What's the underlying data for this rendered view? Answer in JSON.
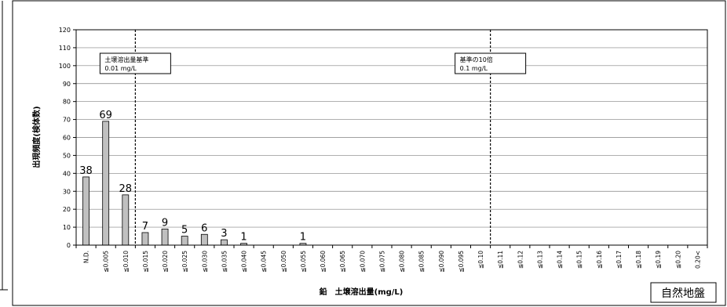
{
  "chart_data": {
    "type": "bar",
    "title": "",
    "xlabel": "鉛　土壌溶出量(mg/L)",
    "ylabel": "出現頻度(検体数)",
    "ylim": [
      0,
      120
    ],
    "yticks": [
      0,
      10,
      20,
      30,
      40,
      50,
      60,
      70,
      80,
      90,
      100,
      110,
      120
    ],
    "grid": true,
    "categories": [
      "N.D.",
      "≦0.005",
      "≦0.010",
      "≦0.015",
      "≦0.020",
      "≦0.025",
      "≦0.030",
      "≦0.035",
      "≦0.040",
      "≦0.045",
      "≦0.050",
      "≦0.055",
      "≦0.060",
      "≦0.065",
      "≦0.070",
      "≦0.075",
      "≦0.080",
      "≦0.085",
      "≦0.090",
      "≦0.095",
      "≦0.10",
      "≦0.11",
      "≦0.12",
      "≦0.13",
      "≦0.14",
      "≦0.15",
      "≦0.16",
      "≦0.17",
      "≦0.18",
      "≦0.19",
      "≦0.20",
      "0.20<"
    ],
    "values": [
      38,
      69,
      28,
      7,
      9,
      5,
      6,
      3,
      1,
      0,
      0,
      1,
      0,
      0,
      0,
      0,
      0,
      0,
      0,
      0,
      0,
      0,
      0,
      0,
      0,
      0,
      0,
      0,
      0,
      0,
      0,
      0
    ],
    "data_labels": [
      "38",
      "69",
      "28",
      "7",
      "9",
      "5",
      "6",
      "3",
      "1",
      "",
      "",
      "1",
      "",
      "",
      "",
      "",
      "",
      "",
      "",
      "",
      "",
      "",
      "",
      "",
      "",
      "",
      "",
      "",
      "",
      "",
      "",
      ""
    ],
    "bar_color": "#c0c0c0",
    "reference_lines": [
      {
        "after_category_index": 2,
        "label_line1": "土壌溶出量基準",
        "label_line2": "0.01 mg/L"
      },
      {
        "after_category_index": 20,
        "label_line1": "基準の10倍",
        "label_line2": "0.1 mg/L"
      }
    ],
    "corner_badge": "自然地盤"
  }
}
